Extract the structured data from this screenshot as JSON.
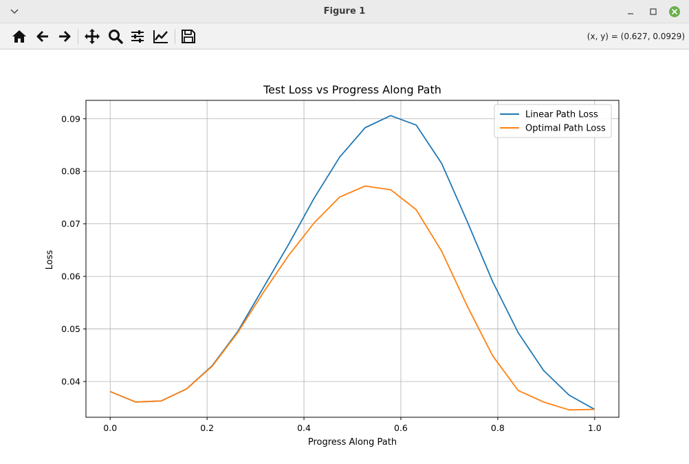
{
  "window": {
    "title": "Figure 1",
    "menu_icon": "chevron-down-icon",
    "minimize_icon": "minimize-icon",
    "maximize_icon": "maximize-icon",
    "close_icon": "close-icon",
    "close_color": "#6ab04c"
  },
  "toolbar": {
    "tools": [
      {
        "name": "home-icon"
      },
      {
        "name": "back-arrow-icon"
      },
      {
        "name": "forward-arrow-icon"
      },
      {
        "name": "pan-move-icon"
      },
      {
        "name": "zoom-magnifier-icon"
      },
      {
        "name": "configure-subplots-icon"
      },
      {
        "name": "edit-axis-lines-icon"
      },
      {
        "name": "save-floppy-icon"
      }
    ],
    "coords_readout": "(x, y) = (0.627, 0.0929)"
  },
  "chart_data": {
    "type": "line",
    "title": "Test Loss vs Progress Along Path",
    "xlabel": "Progress Along Path",
    "ylabel": "Loss",
    "xlim": [
      -0.05,
      1.05
    ],
    "ylim": [
      0.0332,
      0.0935
    ],
    "grid": true,
    "legend_position": "top-right",
    "xticks": [
      0.0,
      0.2,
      0.4,
      0.6,
      0.8,
      1.0
    ],
    "xtick_labels": [
      "0.0",
      "0.2",
      "0.4",
      "0.6",
      "0.8",
      "1.0"
    ],
    "yticks": [
      0.04,
      0.05,
      0.06,
      0.07,
      0.08,
      0.09
    ],
    "ytick_labels": [
      "0.04",
      "0.05",
      "0.06",
      "0.07",
      "0.08",
      "0.09"
    ],
    "x": [
      0.0,
      0.0526,
      0.1053,
      0.1579,
      0.2105,
      0.2632,
      0.3158,
      0.3684,
      0.4211,
      0.4737,
      0.5263,
      0.5789,
      0.6316,
      0.6842,
      0.7368,
      0.7895,
      0.8421,
      0.8947,
      0.9474,
      1.0
    ],
    "series": [
      {
        "name": "Linear Path Loss",
        "color": "#1f77b4",
        "values": [
          0.0381,
          0.0361,
          0.0363,
          0.0386,
          0.043,
          0.0495,
          0.0578,
          0.0661,
          0.0749,
          0.0827,
          0.0883,
          0.0906,
          0.0888,
          0.0815,
          0.0705,
          0.059,
          0.0493,
          0.0421,
          0.0374,
          0.0347
        ]
      },
      {
        "name": "Optimal Path Loss",
        "color": "#ff7f0e",
        "values": [
          0.0381,
          0.0361,
          0.0363,
          0.0386,
          0.0429,
          0.0493,
          0.0569,
          0.064,
          0.0702,
          0.0751,
          0.0772,
          0.0765,
          0.0727,
          0.0648,
          0.0544,
          0.0449,
          0.0383,
          0.0361,
          0.0346,
          0.0347
        ]
      }
    ]
  }
}
